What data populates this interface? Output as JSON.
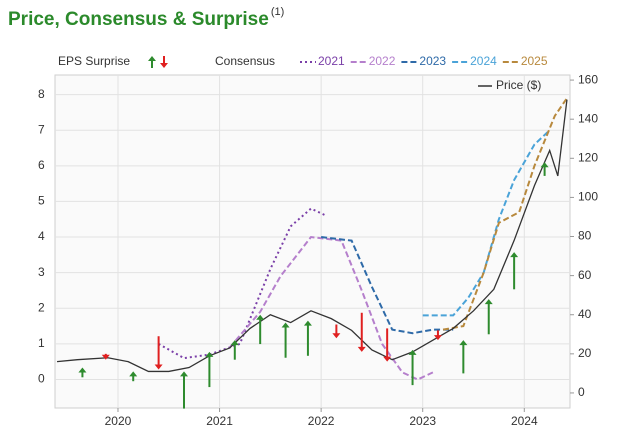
{
  "chart_data": {
    "type": "line",
    "title": "Price, Consensus & Surprise",
    "title_note": "(1)",
    "surprise_label": "EPS Surprise",
    "consensus_label": "Consensus",
    "xlim": [
      2019.38,
      2024.45
    ],
    "xticks": [
      2020,
      2021,
      2022,
      2023,
      2024
    ],
    "ylim": [
      -0.8,
      8.55
    ],
    "yticks": [
      0,
      1,
      2,
      3,
      4,
      5,
      6,
      7,
      8
    ],
    "y2lim": [
      -7.7,
      162.6
    ],
    "y2ticks": [
      0,
      20,
      40,
      60,
      80,
      100,
      120,
      140,
      160
    ],
    "grid": true,
    "series": [
      {
        "name": "2021",
        "color": "#7a3fa8",
        "dash": "dotted",
        "x": [
          2020.4,
          2020.65,
          2020.9,
          2021.2,
          2021.5,
          2021.7,
          2021.9,
          2022.05
        ],
        "values": [
          1.0,
          0.6,
          0.7,
          1.0,
          3.1,
          4.3,
          4.8,
          4.6
        ]
      },
      {
        "name": "2022",
        "color": "#b57fcc",
        "dash": "dashed",
        "x": [
          2021.1,
          2021.4,
          2021.6,
          2021.9,
          2022.2,
          2022.4,
          2022.6,
          2022.8,
          2022.95,
          2023.1
        ],
        "values": [
          0.9,
          1.9,
          2.9,
          4.0,
          3.9,
          2.5,
          1.0,
          0.2,
          0.0,
          0.2
        ]
      },
      {
        "name": "2023",
        "color": "#2e6aa8",
        "dash": "dashed",
        "x": [
          2022.0,
          2022.3,
          2022.5,
          2022.7,
          2022.9,
          2023.1,
          2023.3
        ],
        "values": [
          4.0,
          3.9,
          2.6,
          1.4,
          1.3,
          1.4,
          1.4
        ]
      },
      {
        "name": "2024",
        "color": "#4aa3d8",
        "dash": "dashed",
        "x": [
          2023.0,
          2023.3,
          2023.45,
          2023.6,
          2023.75,
          2023.9,
          2024.1,
          2024.25
        ],
        "values": [
          1.8,
          1.8,
          2.3,
          3.0,
          4.5,
          5.6,
          6.6,
          7.0
        ]
      },
      {
        "name": "2025",
        "color": "#b8893d",
        "dash": "dashed",
        "x": [
          2023.2,
          2023.4,
          2023.6,
          2023.75,
          2023.95,
          2024.1,
          2024.3,
          2024.42
        ],
        "values": [
          1.4,
          1.5,
          3.0,
          4.4,
          4.7,
          6.0,
          7.4,
          7.9
        ]
      },
      {
        "name": "Price ($)",
        "color": "#333333",
        "dash": "solid",
        "axis": "y2",
        "x": [
          2019.4,
          2019.6,
          2019.9,
          2020.1,
          2020.3,
          2020.5,
          2020.7,
          2020.9,
          2021.1,
          2021.3,
          2021.5,
          2021.7,
          2021.9,
          2022.1,
          2022.3,
          2022.5,
          2022.7,
          2022.9,
          2023.1,
          2023.3,
          2023.5,
          2023.7,
          2023.9,
          2024.1,
          2024.25,
          2024.33,
          2024.42
        ],
        "values": [
          16,
          17,
          18,
          16,
          11,
          11,
          13,
          19,
          23,
          33,
          40,
          36,
          42,
          38,
          32,
          22,
          17,
          21,
          27,
          33,
          42,
          53,
          78,
          106,
          124,
          111,
          150
        ]
      }
    ],
    "surprises": {
      "up_color": "#2e8b2e",
      "down_color": "#e02020",
      "x": [
        2019.65,
        2019.88,
        2020.15,
        2020.4,
        2020.65,
        2020.9,
        2021.15,
        2021.4,
        2021.65,
        2021.87,
        2022.15,
        2022.4,
        2022.65,
        2022.9,
        2023.15,
        2023.4,
        2023.65,
        2023.9,
        2024.2
      ],
      "from": [
        8,
        20,
        6,
        29,
        -8,
        3,
        17,
        25,
        18,
        19,
        35,
        41,
        33,
        4,
        32,
        10,
        30,
        53,
        111
      ],
      "to": [
        13,
        17,
        11,
        12,
        11,
        21,
        27,
        40,
        36,
        37,
        28,
        21,
        16,
        22,
        27,
        27,
        48,
        72,
        118
      ]
    }
  }
}
